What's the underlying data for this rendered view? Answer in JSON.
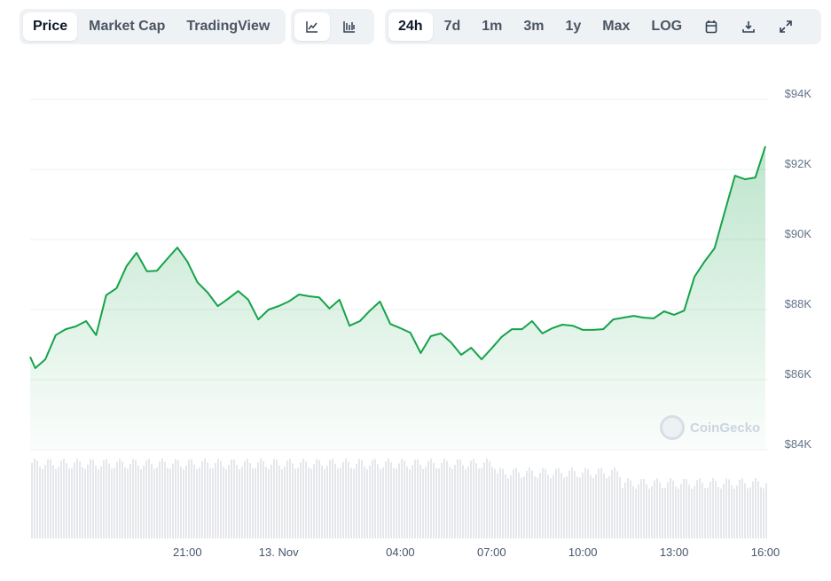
{
  "toolbar": {
    "view_tabs": [
      {
        "label": "Price",
        "active": true
      },
      {
        "label": "Market Cap",
        "active": false
      },
      {
        "label": "TradingView",
        "active": false
      }
    ],
    "chart_types": [
      {
        "icon": "line-chart-icon",
        "active": true
      },
      {
        "icon": "candlestick-chart-icon",
        "active": false
      }
    ],
    "ranges": [
      {
        "label": "24h",
        "active": true
      },
      {
        "label": "7d",
        "active": false
      },
      {
        "label": "1m",
        "active": false
      },
      {
        "label": "3m",
        "active": false
      },
      {
        "label": "1y",
        "active": false
      },
      {
        "label": "Max",
        "active": false
      },
      {
        "label": "LOG",
        "active": false
      }
    ],
    "actions": [
      "calendar-icon",
      "download-icon",
      "expand-icon"
    ]
  },
  "watermark": "CoinGecko",
  "colors": {
    "line": "#16a34a",
    "fill": "#16a34a",
    "volume": "#e5e7eb",
    "grid": "#eef0f3"
  },
  "chart_data": {
    "type": "area",
    "ylim": [
      84000,
      94000
    ],
    "y_ticks": [
      "$84K",
      "$86K",
      "$88K",
      "$90K",
      "$92K",
      "$94K"
    ],
    "y_tick_values": [
      84000,
      86000,
      88000,
      90000,
      92000,
      94000
    ],
    "x_ticks": [
      "21:00",
      "13. Nov",
      "04:00",
      "07:00",
      "10:00",
      "13:00",
      "16:00"
    ],
    "x_tick_hours": [
      21,
      24,
      28,
      31,
      34,
      37,
      40
    ],
    "grid": true,
    "legend": "none",
    "x_hours": [
      15.83,
      16,
      16.33,
      16.67,
      17,
      17.33,
      17.67,
      18,
      18.33,
      18.67,
      19,
      19.33,
      19.67,
      20,
      20.33,
      20.67,
      21,
      21.33,
      21.67,
      22,
      22.33,
      22.67,
      23,
      23.33,
      23.67,
      24,
      24.33,
      24.67,
      25,
      25.33,
      25.67,
      26,
      26.33,
      26.67,
      27,
      27.33,
      27.67,
      28,
      28.33,
      28.67,
      29,
      29.33,
      29.67,
      30,
      30.33,
      30.67,
      31,
      31.33,
      31.67,
      32,
      32.33,
      32.67,
      33,
      33.33,
      33.67,
      34,
      34.33,
      34.67,
      35,
      35.33,
      35.67,
      36,
      36.33,
      36.67,
      37,
      37.33,
      37.67,
      38,
      38.33,
      38.67,
      39,
      39.33,
      39.67,
      40
    ],
    "values": [
      86650,
      86330,
      86580,
      87270,
      87440,
      87520,
      87670,
      87270,
      88410,
      88610,
      89240,
      89620,
      89090,
      89110,
      89440,
      89770,
      89370,
      88780,
      88480,
      88100,
      88300,
      88530,
      88280,
      87720,
      88000,
      88100,
      88230,
      88430,
      88380,
      88350,
      88030,
      88280,
      87540,
      87670,
      87970,
      88230,
      87590,
      87470,
      87340,
      86760,
      87240,
      87320,
      87060,
      86710,
      86910,
      86580,
      86890,
      87220,
      87440,
      87440,
      87670,
      87320,
      87470,
      87570,
      87540,
      87420,
      87420,
      87440,
      87720,
      87770,
      87820,
      87770,
      87750,
      87950,
      87850,
      87970,
      88940,
      89370,
      89750,
      90810,
      91820,
      91720,
      91770,
      92660
    ]
  }
}
